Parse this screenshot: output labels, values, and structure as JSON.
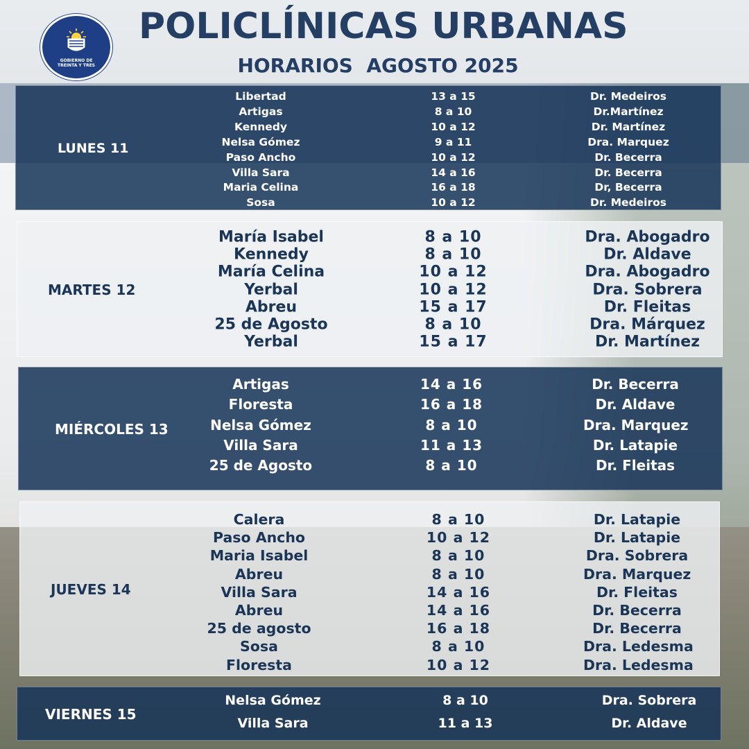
{
  "header": {
    "title": "POLICLÍNICAS URBANAS",
    "subtitle": "HORARIOS  AGOSTO 2025",
    "logo_text": "GOBIERNO DE TREINTA Y TRES"
  },
  "colors": {
    "primary": "#243f63",
    "dark_band": "#173458",
    "light_band": "#eef0f3",
    "logo_blue": "#1e3f86"
  },
  "days": [
    {
      "day": "LUNES 11",
      "style": "dark",
      "rows": [
        {
          "place": "Libertad",
          "time": "13 a 15",
          "doctor": "Dr.  Medeiros"
        },
        {
          "place": "Artigas",
          "time": "8 a 10",
          "doctor": "Dr.Martínez"
        },
        {
          "place": "Kennedy",
          "time": "10 a 12",
          "doctor": "Dr. Martínez"
        },
        {
          "place": "Nelsa Gómez",
          "time": "9 a 11",
          "doctor": "Dra. Marquez"
        },
        {
          "place": "Paso Ancho",
          "time": "10 a 12",
          "doctor": "Dr. Becerra"
        },
        {
          "place": "Villa Sara",
          "time": "14 a 16",
          "doctor": "Dr.  Becerra"
        },
        {
          "place": "Maria Celina",
          "time": "16 a 18",
          "doctor": "Dr, Becerra"
        },
        {
          "place": "Sosa",
          "time": "10 a 12",
          "doctor": "Dr. Medeiros"
        }
      ]
    },
    {
      "day": "MARTES 12",
      "style": "light",
      "rows": [
        {
          "place": "María Isabel",
          "time": "8 a 10",
          "doctor": "Dra. Abogadro"
        },
        {
          "place": "Kennedy",
          "time": "8 a 10",
          "doctor": "Dr. Aldave"
        },
        {
          "place": "María Celina",
          "time": "10 a 12",
          "doctor": "Dra. Abogadro"
        },
        {
          "place": "Yerbal",
          "time": "10 a 12",
          "doctor": "Dra. Sobrera"
        },
        {
          "place": "Abreu",
          "time": "15 a 17",
          "doctor": "Dr. Fleitas"
        },
        {
          "place": "25 de Agosto",
          "time": "8 a 10",
          "doctor": "Dra. Márquez"
        },
        {
          "place": "Yerbal",
          "time": "15 a 17",
          "doctor": "Dr. Martínez"
        }
      ]
    },
    {
      "day": "MIÉRCOLES 13",
      "style": "dark",
      "rows": [
        {
          "place": "Artigas",
          "time": "14 a 16",
          "doctor": "Dr. Becerra"
        },
        {
          "place": "Floresta",
          "time": "16 a 18",
          "doctor": "Dr. Aldave"
        },
        {
          "place": "Nelsa Gómez",
          "time": "8 a 10",
          "doctor": "Dra.  Marquez"
        },
        {
          "place": "Villa Sara",
          "time": "11 a 13",
          "doctor": "Dr. Latapie"
        },
        {
          "place": "25 de Agosto",
          "time": "8 a 10",
          "doctor": "Dr. Fleitas"
        }
      ]
    },
    {
      "day": "JUEVES 14",
      "style": "light",
      "rows": [
        {
          "place": "Calera",
          "time": "8 a 10",
          "doctor": "Dr.  Latapie"
        },
        {
          "place": "Paso Ancho",
          "time": "10 a 12",
          "doctor": "Dr. Latapie"
        },
        {
          "place": "Maria Isabel",
          "time": "8 a 10",
          "doctor": "Dra. Sobrera"
        },
        {
          "place": "Abreu",
          "time": "8 a 10",
          "doctor": "Dra. Marquez"
        },
        {
          "place": "Villa Sara",
          "time": "14 a 16",
          "doctor": "Dr. Fleitas"
        },
        {
          "place": "Abreu",
          "time": "14 a 16",
          "doctor": "Dr.  Becerra"
        },
        {
          "place": "25 de agosto",
          "time": "16 a 18",
          "doctor": "Dr. Becerra"
        },
        {
          "place": "Sosa",
          "time": "8 a 10",
          "doctor": "Dra. Ledesma"
        },
        {
          "place": "Floresta",
          "time": "10 a 12",
          "doctor": "Dra. Ledesma"
        }
      ]
    },
    {
      "day": "VIERNES  15",
      "style": "dark",
      "rows": [
        {
          "place": "Nelsa Gómez",
          "time": "8 a 10",
          "doctor": "Dra. Sobrera"
        },
        {
          "place": "Villa Sara",
          "time": "11 a 13",
          "doctor": "Dr. Aldave"
        }
      ]
    }
  ]
}
